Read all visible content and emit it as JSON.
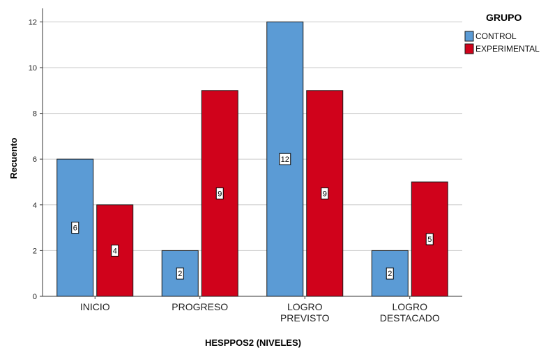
{
  "chart_data": {
    "type": "bar",
    "categories": [
      [
        "INICIO"
      ],
      [
        "PROGRESO"
      ],
      [
        "LOGRO",
        "PREVISTO"
      ],
      [
        "LOGRO",
        "DESTACADO"
      ]
    ],
    "series": [
      {
        "name": "CONTROL",
        "values": [
          6,
          2,
          12,
          2
        ],
        "color": "#5b9bd5"
      },
      {
        "name": "EXPERIMENTAL",
        "values": [
          4,
          9,
          9,
          5
        ],
        "color": "#d0021b"
      }
    ],
    "xlabel": "HESPPOS2 (NIVELES)",
    "ylabel": "Recuento",
    "ylim": [
      0,
      12
    ],
    "yticks": [
      0,
      2,
      4,
      6,
      8,
      10,
      12
    ],
    "legend_title": "GRUPO",
    "legend_position": "top-right",
    "grid": true,
    "data_labels": true
  }
}
